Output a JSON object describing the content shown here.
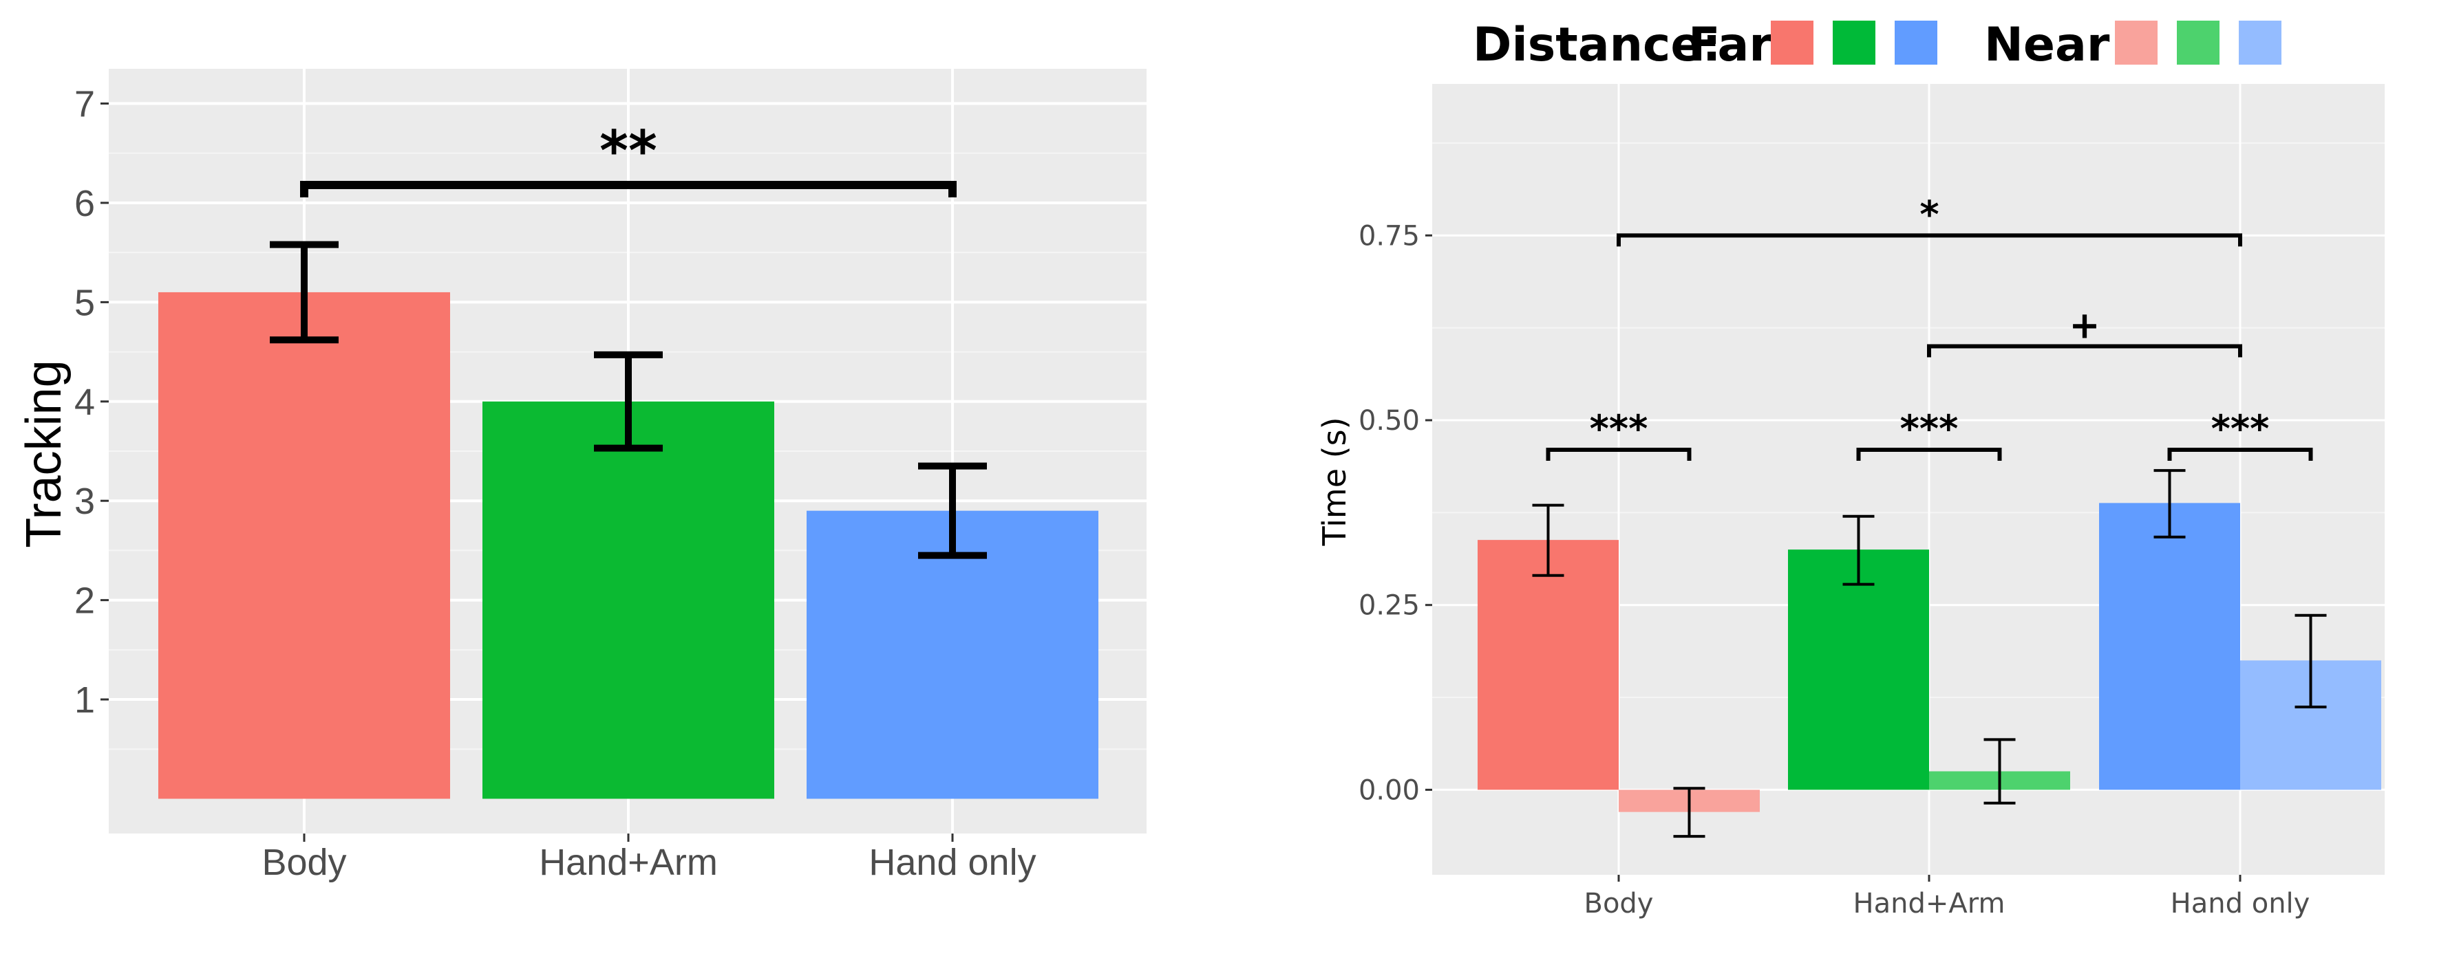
{
  "chart_data": [
    {
      "type": "bar",
      "title": "",
      "xlabel": "",
      "ylabel": "Tracking",
      "categories": [
        "Body",
        "Hand+Arm",
        "Hand only"
      ],
      "values": [
        5.1,
        4.0,
        2.9
      ],
      "error": [
        [
          4.62,
          5.58
        ],
        [
          3.53,
          4.47
        ],
        [
          2.45,
          3.35
        ]
      ],
      "colors": [
        "#F8766D",
        "#0BBA32",
        "#619CFF"
      ],
      "baseline": 0,
      "ylim": [
        -0.35,
        7.35
      ],
      "yticks": [
        1,
        2,
        3,
        4,
        5,
        6,
        7
      ],
      "ytick_labels": [
        "1",
        "2",
        "3",
        "4",
        "5",
        "6",
        "7"
      ],
      "grid": true,
      "annotations": [
        {
          "from": "Body",
          "to": "Hand only",
          "value": 6.18,
          "label": "**"
        }
      ]
    },
    {
      "type": "bar",
      "title": "",
      "xlabel": "",
      "ylabel": "Time (s)",
      "categories": [
        "Body",
        "Hand+Arm",
        "Hand only"
      ],
      "series": [
        {
          "name": "Far",
          "values": [
            0.338,
            0.325,
            0.388
          ],
          "error": [
            [
              0.29,
              0.385
            ],
            [
              0.278,
              0.37
            ],
            [
              0.342,
              0.432
            ]
          ],
          "colors": [
            "#F8766D",
            "#00BA38",
            "#619CFF"
          ]
        },
        {
          "name": "Near",
          "values": [
            -0.03,
            0.025,
            0.175
          ],
          "error": [
            [
              -0.063,
              0.002
            ],
            [
              -0.018,
              0.068
            ],
            [
              0.112,
              0.236
            ]
          ],
          "colors": [
            "#F9A39C",
            "#4DD26D",
            "#94BCFF"
          ]
        }
      ],
      "ylim": [
        -0.115,
        0.955
      ],
      "yticks": [
        0,
        0.25,
        0.5,
        0.75
      ],
      "ytick_labels": [
        "0.00",
        "0.25",
        "0.50",
        "0.75"
      ],
      "grid": true,
      "legend": {
        "title": "Distance:",
        "position": "top",
        "entries": [
          {
            "label": "Far",
            "colors": [
              "#F8766D",
              "#00BA38",
              "#619CFF"
            ]
          },
          {
            "label": "Near",
            "colors": [
              "#F9A39C",
              "#4DD26D",
              "#94BCFF"
            ]
          }
        ]
      },
      "annotations": [
        {
          "from": "Body",
          "to": "Hand only",
          "value": 0.75,
          "label": "*",
          "scope": "between-groups"
        },
        {
          "from": "Hand+Arm",
          "to": "Hand only",
          "value": 0.6,
          "label": "+",
          "scope": "between-groups"
        },
        {
          "group": "Body",
          "value": 0.46,
          "label": "***",
          "scope": "within-group"
        },
        {
          "group": "Hand+Arm",
          "value": 0.46,
          "label": "***",
          "scope": "within-group"
        },
        {
          "group": "Hand only",
          "value": 0.46,
          "label": "***",
          "scope": "within-group"
        }
      ]
    }
  ]
}
